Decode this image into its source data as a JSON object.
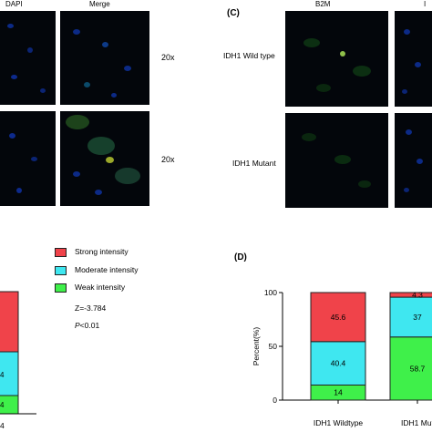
{
  "panel_A": {
    "header_dapi": "DAPI",
    "header_merge": "Merge",
    "magnification_top": "20x",
    "magnification_bottom": "20x"
  },
  "panel_C": {
    "letter": "(C)",
    "header_b2m": "B2M",
    "header_partial": "I",
    "row_wildtype": "IDH1 Wild type",
    "row_mutant": "IDH1 Mutant"
  },
  "panel_B": {
    "legend": [
      {
        "label": "Strong intensity",
        "color": "#f0434a"
      },
      {
        "label": "Moderate intensity",
        "color": "#3fe7f0"
      },
      {
        "label": "Weak intensity",
        "color": "#3ff04a"
      }
    ],
    "stat_z": "Z=-3.784",
    "stat_p_italic": "P",
    "stat_p_rest": "<0.01",
    "bar_label_mid": "4",
    "bar_label_bottom": "4",
    "x_label_partial": "4"
  },
  "panel_D": {
    "letter": "(D)"
  },
  "chart_data": {
    "type": "bar",
    "stacked": true,
    "categories": [
      "IDH1 Wildtype",
      "IDH1 Mut"
    ],
    "series": [
      {
        "name": "Weak intensity",
        "values": [
          14,
          58.7
        ],
        "color": "#3ff04a"
      },
      {
        "name": "Moderate intensity",
        "values": [
          40.4,
          37
        ],
        "color": "#3fe7f0"
      },
      {
        "name": "Strong intensity",
        "values": [
          45.6,
          4.3
        ],
        "color": "#f0434a"
      }
    ],
    "data_labels": [
      [
        "14",
        "40.4",
        "45.6"
      ],
      [
        "58.7",
        "37",
        "4.3"
      ]
    ],
    "ylabel": "Percent(%)",
    "ylim": [
      0,
      100
    ],
    "yticks": [
      "0",
      "50",
      "100"
    ]
  }
}
